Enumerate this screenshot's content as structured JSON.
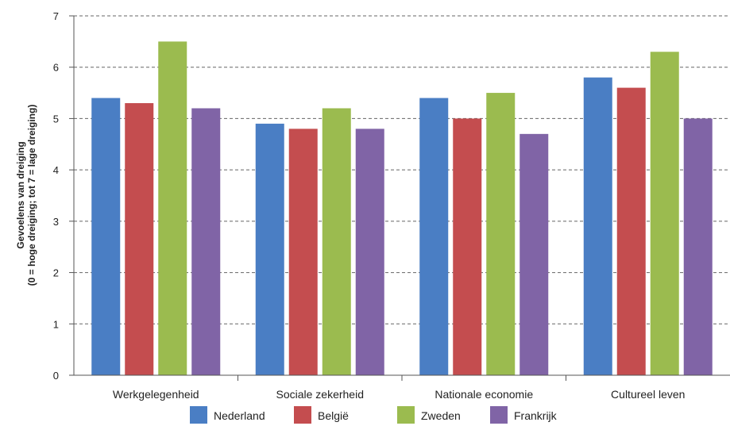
{
  "chart_data": {
    "type": "bar",
    "categories": [
      "Werkgelegenheid",
      "Sociale zekerheid",
      "Nationale economie",
      "Cultureel leven"
    ],
    "series": [
      {
        "name": "Nederland",
        "color": "#4a7ec4",
        "values": [
          5.4,
          4.9,
          5.4,
          5.8
        ]
      },
      {
        "name": "België",
        "color": "#c44d4f",
        "values": [
          5.3,
          4.8,
          5.0,
          5.6
        ]
      },
      {
        "name": "Zweden",
        "color": "#9bbb4f",
        "values": [
          6.5,
          5.2,
          5.5,
          6.3
        ]
      },
      {
        "name": "Frankrijk",
        "color": "#8064a6",
        "values": [
          5.2,
          4.8,
          4.7,
          5.0
        ]
      }
    ],
    "ylabel_line1": "Gevoelens van dreiging",
    "ylabel_line2": "(0 = hoge dreiging; tot 7 = lage dreiging)",
    "ylim": [
      0,
      7
    ],
    "yticks": [
      "0",
      "1",
      "2",
      "3",
      "4",
      "5",
      "6",
      "7"
    ],
    "grid": "horizontal-dashed",
    "legend_position": "bottom"
  }
}
